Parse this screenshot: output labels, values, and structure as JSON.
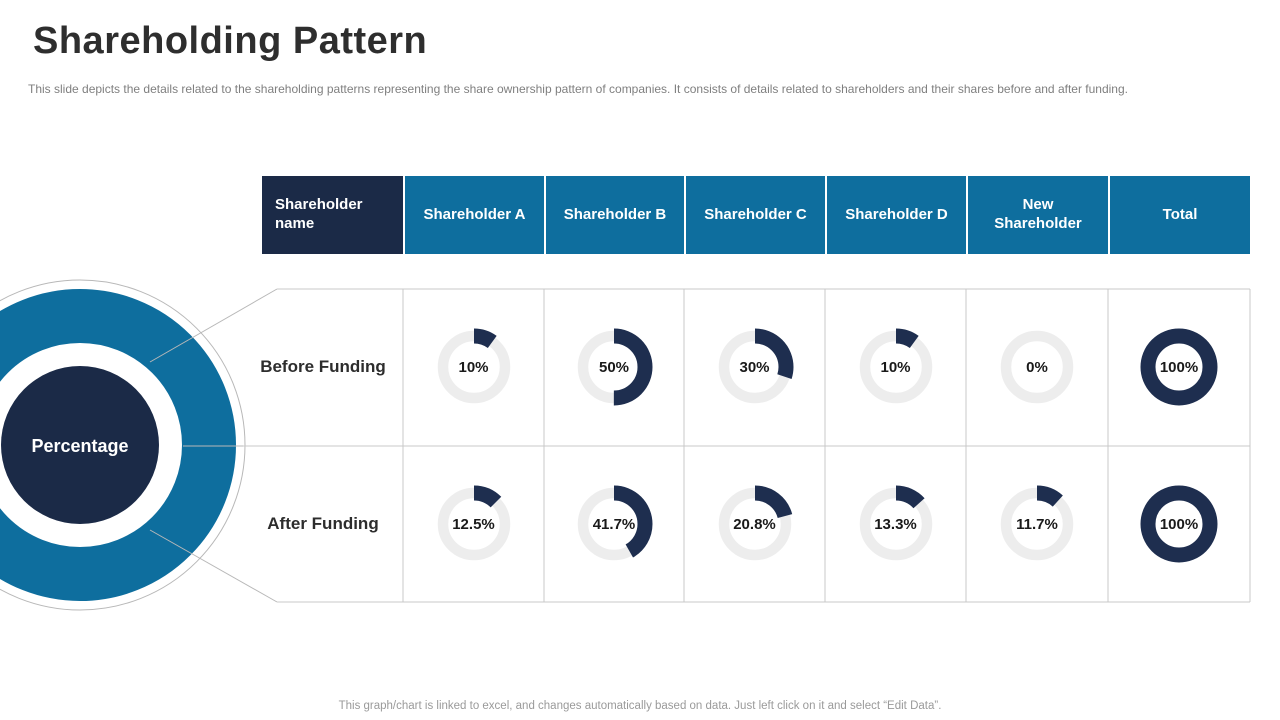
{
  "slide": {
    "title": "Shareholding Pattern",
    "subtitle": "This slide depicts the details related to the shareholding patterns representing the share ownership pattern of companies. It consists of details related to shareholders and their shares before and after funding.",
    "footer": "This graph/chart is linked to excel, and changes automatically based on data. Just left click on it and select “Edit Data”."
  },
  "left_graphic": {
    "label": "Percentage"
  },
  "colors": {
    "header_first_bg": "#1b2a47",
    "header_bg": "#0e6e9e",
    "ring_blue": "#0e6e9e",
    "hub_navy": "#1b2a47",
    "donut_arc": "#1e2e4f",
    "donut_track": "#ededed",
    "grid_line": "#c9c9c9",
    "callout_line": "#b8b8b8"
  },
  "chart_data": {
    "type": "table",
    "visualization": "donut gauge per cell, navy arc from 12 o'clock clockwise over light-gray track",
    "columns": [
      "Shareholder\nname",
      "Shareholder A",
      "Shareholder B",
      "Shareholder C",
      "Shareholder D",
      "New\nShareholder",
      "Total"
    ],
    "rows": [
      {
        "label": "Before Funding",
        "values": [
          10,
          50,
          30,
          10,
          0,
          100
        ],
        "display": [
          "10%",
          "50%",
          "30%",
          "10%",
          "0%",
          "100%"
        ]
      },
      {
        "label": "After Funding",
        "values": [
          12.5,
          41.7,
          20.8,
          13.3,
          11.7,
          100
        ],
        "display": [
          "12.5%",
          "41.7%",
          "20.8%",
          "13.3%",
          "11.7%",
          "100%"
        ]
      }
    ]
  }
}
